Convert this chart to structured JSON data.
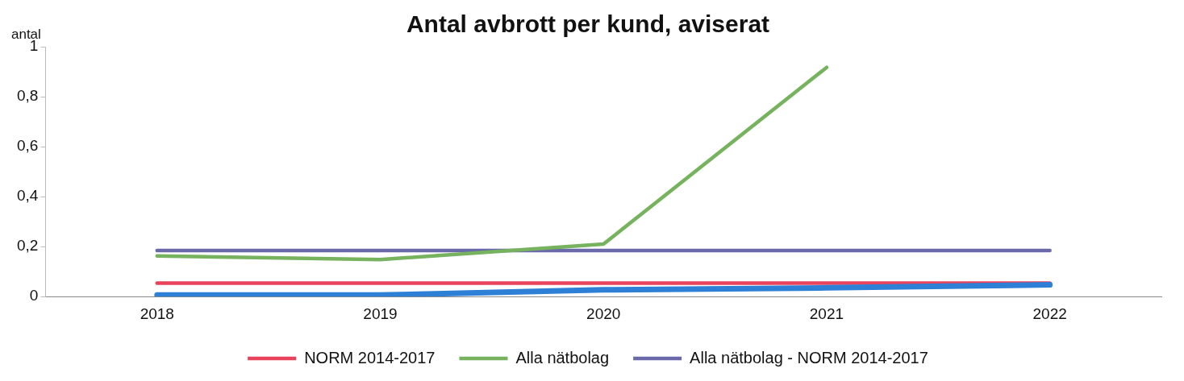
{
  "chart_data": {
    "type": "line",
    "title": "Antal avbrott per kund, aviserat",
    "ylabel": "antal",
    "categories": [
      "2018",
      "2019",
      "2020",
      "2021",
      "2022"
    ],
    "ylim": [
      0,
      1
    ],
    "yticks": [
      0,
      {
        "value": 0.2,
        "label": "0,2"
      },
      {
        "value": 0.4,
        "label": "0,4"
      },
      {
        "value": 0.6,
        "label": "0,6"
      },
      {
        "value": 0.8,
        "label": "0,8"
      },
      1
    ],
    "grid": false,
    "legend": "bottom",
    "marker": "none",
    "line_style": "solid",
    "series": [
      {
        "color": "#2e7fd6",
        "values": [
          0.006,
          0.006,
          0.027,
          0.035,
          0.047
        ]
      },
      {
        "name": "NORM 2014-2017",
        "color": "#e8435a",
        "values": [
          0.054,
          0.054,
          0.054,
          0.054,
          0.054
        ]
      },
      {
        "name": "Alla nätbolag",
        "color": "#77b25e",
        "values": [
          0.163,
          0.148,
          0.21,
          0.917,
          null
        ]
      },
      {
        "name": "Alla nätbolag - NORM 2014-2017",
        "color": "#6a6aaa",
        "values": [
          0.184,
          0.184,
          0.184,
          0.184,
          0.184
        ]
      }
    ]
  }
}
